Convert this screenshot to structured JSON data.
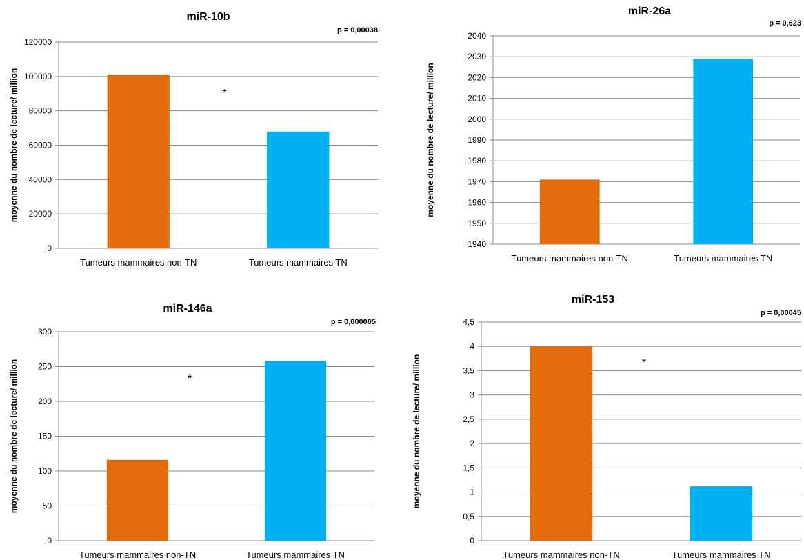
{
  "chart_data": [
    {
      "type": "bar",
      "title": "miR-10b",
      "annotation": "p = 0,00038",
      "significance": "*",
      "ylabel": "moyenne du nombre de lecture/ million",
      "xlabel": "",
      "categories": [
        "Tumeurs mammaires non-TN",
        "Tumeurs mammaires TN"
      ],
      "values": [
        100800,
        67900
      ],
      "colors": [
        "#E36C0A",
        "#00B0F0"
      ],
      "ylim": [
        0,
        120000
      ],
      "ytick_labels": [
        "0",
        "20000",
        "40000",
        "60000",
        "80000",
        "100000",
        "120000"
      ],
      "grid": true
    },
    {
      "type": "bar",
      "title": "miR-26a",
      "annotation": "p = 0,623",
      "significance": "",
      "ylabel": "moyenne du nombre de lecture/ million",
      "xlabel": "",
      "categories": [
        "Tumeurs mammaires non-TN",
        "Tumeurs mammaires TN"
      ],
      "values": [
        1971,
        2029
      ],
      "colors": [
        "#E36C0A",
        "#00B0F0"
      ],
      "ylim": [
        1940,
        2040
      ],
      "ytick_labels": [
        "1940",
        "1950",
        "1960",
        "1970",
        "1980",
        "1990",
        "2000",
        "2010",
        "2020",
        "2030",
        "2040"
      ],
      "grid": true
    },
    {
      "type": "bar",
      "title": "miR-146a",
      "annotation": "p = 0,000005",
      "significance": "*",
      "ylabel": "moyenne du nombre de lecture/ million",
      "xlabel": "",
      "categories": [
        "Tumeurs mammaires non-TN",
        "Tumeurs mammaires TN"
      ],
      "values": [
        116,
        258
      ],
      "colors": [
        "#E36C0A",
        "#00B0F0"
      ],
      "ylim": [
        0,
        300
      ],
      "ytick_labels": [
        "0",
        "50",
        "100",
        "150",
        "200",
        "250",
        "300"
      ],
      "grid": true
    },
    {
      "type": "bar",
      "title": "miR-153",
      "annotation": "p = 0,00045",
      "significance": "*",
      "ylabel": "moyenne du nombre de lecture/ million",
      "xlabel": "",
      "categories": [
        "Tumeurs mammaires non-TN",
        "Tumeurs mammaires TN"
      ],
      "values": [
        4.0,
        1.12
      ],
      "colors": [
        "#E36C0A",
        "#00B0F0"
      ],
      "ylim": [
        0,
        4.5
      ],
      "ytick_labels": [
        "0",
        "0,5",
        "1",
        "1,5",
        "2",
        "2,5",
        "3",
        "3,5",
        "4",
        "4,5"
      ],
      "grid": true
    }
  ]
}
